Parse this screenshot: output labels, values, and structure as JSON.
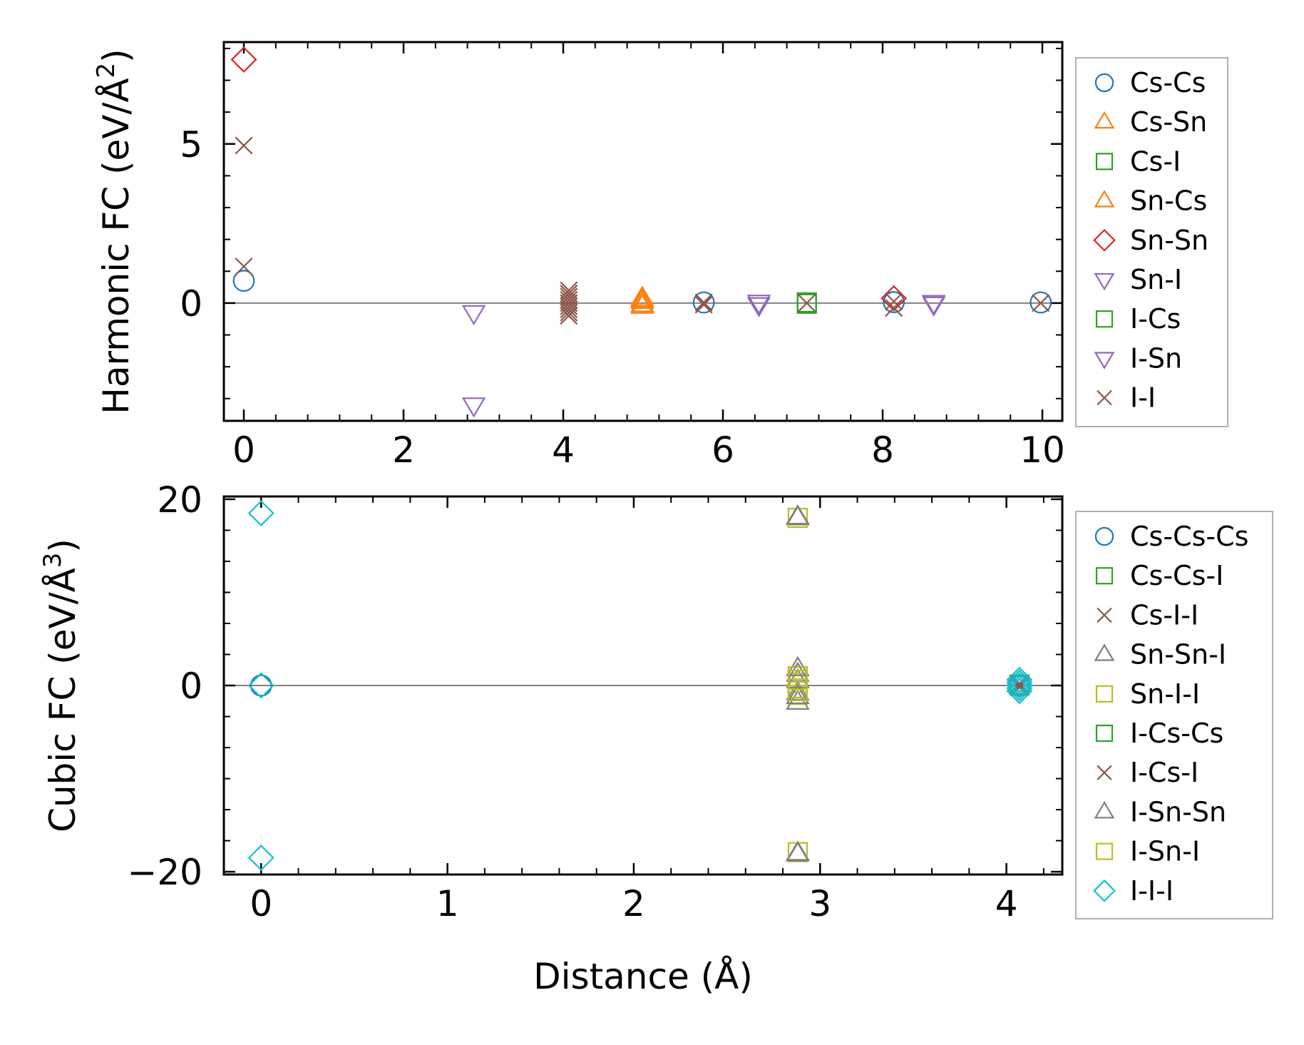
{
  "chart_data": [
    {
      "type": "scatter",
      "ylabel_main": "Harmonic FC (eV/Å",
      "ylabel_exp": "2",
      "ylabel_close": ")",
      "xlabel": "",
      "xlim": [
        -0.25,
        10.25
      ],
      "ylim": [
        -3.7,
        8.2
      ],
      "xticks": [
        0,
        2,
        4,
        6,
        8,
        10
      ],
      "xtick_labels": [
        "0",
        "2",
        "4",
        "6",
        "8",
        "10"
      ],
      "yticks": [
        0,
        5
      ],
      "ytick_labels": [
        "0",
        "5"
      ],
      "zero_line": true,
      "legend_position": "outside-right",
      "series": [
        {
          "name": "Cs-Cs",
          "marker": "circle",
          "color": "#1f77b4",
          "points": [
            [
              0,
              0.7
            ],
            [
              5.76,
              0.02
            ],
            [
              8.14,
              0.03
            ],
            [
              9.98,
              0.02
            ]
          ]
        },
        {
          "name": "Cs-Sn",
          "marker": "triangle-up",
          "color": "#ff7f0e",
          "points": [
            [
              4.99,
              0.15
            ],
            [
              4.99,
              -0.1
            ],
            [
              4.99,
              0.05
            ]
          ]
        },
        {
          "name": "Cs-I",
          "marker": "square",
          "color": "#2ca02c",
          "points": [
            [
              7.05,
              0.0
            ],
            [
              7.05,
              0.02
            ]
          ]
        },
        {
          "name": "Sn-Cs",
          "marker": "triangle-up",
          "color": "#ff7f0e",
          "points": [
            [
              4.99,
              -0.05
            ],
            [
              4.99,
              0.1
            ]
          ]
        },
        {
          "name": "Sn-Sn",
          "marker": "diamond",
          "color": "#d62728",
          "points": [
            [
              0,
              7.65
            ],
            [
              8.14,
              0.15
            ]
          ]
        },
        {
          "name": "Sn-I",
          "marker": "triangle-down",
          "color": "#9467bd",
          "points": [
            [
              2.88,
              -0.3
            ],
            [
              2.88,
              -3.2
            ],
            [
              6.45,
              -0.05
            ],
            [
              8.64,
              -0.03
            ]
          ]
        },
        {
          "name": "I-Cs",
          "marker": "square",
          "color": "#2ca02c",
          "points": [
            [
              7.05,
              -0.02
            ]
          ]
        },
        {
          "name": "I-Sn",
          "marker": "triangle-down",
          "color": "#9467bd",
          "points": [
            [
              6.45,
              0.03
            ],
            [
              8.64,
              0.02
            ]
          ]
        },
        {
          "name": "I-I",
          "marker": "x",
          "color": "#8c564b",
          "points": [
            [
              0,
              4.95
            ],
            [
              0,
              1.15
            ],
            [
              4.07,
              0.4
            ],
            [
              4.07,
              0.3
            ],
            [
              4.07,
              0.2
            ],
            [
              4.07,
              0.1
            ],
            [
              4.07,
              0.0
            ],
            [
              4.07,
              -0.1
            ],
            [
              4.07,
              -0.2
            ],
            [
              4.07,
              -0.3
            ],
            [
              4.07,
              -0.4
            ],
            [
              5.76,
              0.02
            ],
            [
              5.76,
              -0.05
            ],
            [
              7.05,
              0.0
            ],
            [
              8.14,
              -0.15
            ],
            [
              8.14,
              0.05
            ],
            [
              9.98,
              0.0
            ]
          ]
        }
      ]
    },
    {
      "type": "scatter",
      "ylabel_main": "Cubic FC (eV/Å",
      "ylabel_exp": "3",
      "ylabel_close": ")",
      "xlabel": "Distance (Å)",
      "xlim": [
        -0.2,
        4.3
      ],
      "ylim": [
        -20.3,
        20.3
      ],
      "xticks": [
        0,
        1,
        2,
        3,
        4
      ],
      "xtick_labels": [
        "0",
        "1",
        "2",
        "3",
        "4"
      ],
      "yticks": [
        -20,
        0,
        20
      ],
      "ytick_labels": [
        "−20",
        "0",
        "20"
      ],
      "zero_line": true,
      "legend_position": "outside-right",
      "series": [
        {
          "name": "Cs-Cs-Cs",
          "marker": "circle",
          "color": "#1f77b4",
          "points": [
            [
              0,
              0.0
            ],
            [
              4.07,
              0.0
            ]
          ]
        },
        {
          "name": "Cs-Cs-I",
          "marker": "square",
          "color": "#2ca02c",
          "points": [
            [
              4.07,
              0.0
            ]
          ]
        },
        {
          "name": "Cs-I-I",
          "marker": "x",
          "color": "#8c564b",
          "points": [
            [
              4.07,
              0.2
            ],
            [
              4.07,
              -0.2
            ]
          ]
        },
        {
          "name": "Sn-Sn-I",
          "marker": "triangle-up",
          "color": "#7f7f7f",
          "points": [
            [
              2.88,
              1.8
            ],
            [
              2.88,
              0.5
            ],
            [
              2.88,
              -0.8
            ],
            [
              2.88,
              -1.8
            ],
            [
              2.88,
              18.0
            ],
            [
              2.88,
              -18.0
            ]
          ]
        },
        {
          "name": "Sn-I-I",
          "marker": "square",
          "color": "#bcbd22",
          "points": [
            [
              2.88,
              18.0
            ],
            [
              2.88,
              1.0
            ],
            [
              2.88,
              0.3
            ],
            [
              2.88,
              -0.3
            ],
            [
              2.88,
              -1.0
            ],
            [
              2.88,
              -17.9
            ]
          ]
        },
        {
          "name": "I-Cs-Cs",
          "marker": "square",
          "color": "#2ca02c",
          "points": [
            [
              4.07,
              0.1
            ]
          ]
        },
        {
          "name": "I-Cs-I",
          "marker": "x",
          "color": "#8c564b",
          "points": [
            [
              4.07,
              0.0
            ]
          ]
        },
        {
          "name": "I-Sn-Sn",
          "marker": "triangle-up",
          "color": "#7f7f7f",
          "points": [
            [
              2.88,
              18.1
            ],
            [
              2.88,
              1.2
            ],
            [
              2.88,
              -1.2
            ],
            [
              2.88,
              -18.1
            ]
          ]
        },
        {
          "name": "I-Sn-I",
          "marker": "square",
          "color": "#bcbd22",
          "points": [
            [
              2.88,
              0.6
            ],
            [
              2.88,
              -0.6
            ]
          ]
        },
        {
          "name": "I-I-I",
          "marker": "diamond",
          "color": "#17becf",
          "points": [
            [
              0,
              18.5
            ],
            [
              0,
              0.0
            ],
            [
              0,
              -18.5
            ],
            [
              4.07,
              0.6
            ],
            [
              4.07,
              0.3
            ],
            [
              4.07,
              0.0
            ],
            [
              4.07,
              -0.3
            ],
            [
              4.07,
              -0.6
            ]
          ]
        }
      ]
    }
  ]
}
